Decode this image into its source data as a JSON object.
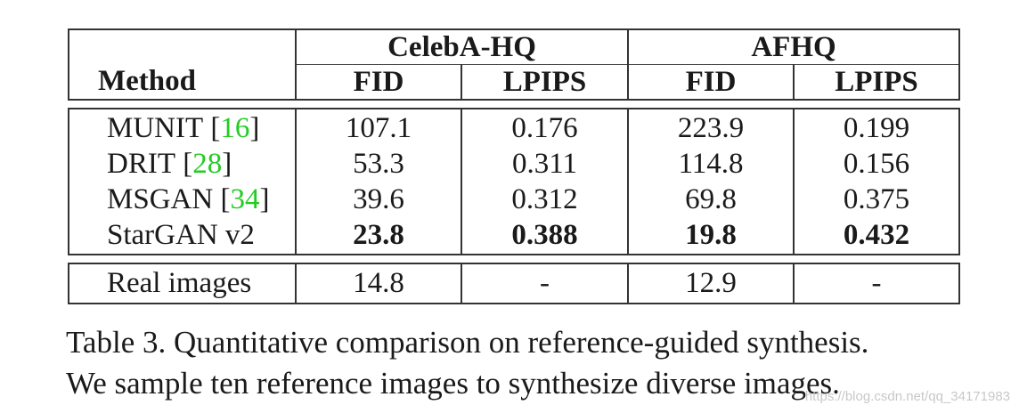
{
  "table": {
    "header": {
      "method": "Method",
      "group1": "CelebA-HQ",
      "group2": "AFHQ",
      "col_fid": "FID",
      "col_lpips": "LPIPS"
    },
    "rows": [
      {
        "method": "MUNIT",
        "cite": "16",
        "celeba_fid": "107.1",
        "celeba_lpips": "0.176",
        "afhq_fid": "223.9",
        "afhq_lpips": "0.199",
        "bold": false
      },
      {
        "method": "DRIT",
        "cite": "28",
        "celeba_fid": "53.3",
        "celeba_lpips": "0.311",
        "afhq_fid": "114.8",
        "afhq_lpips": "0.156",
        "bold": false
      },
      {
        "method": "MSGAN",
        "cite": "34",
        "celeba_fid": "39.6",
        "celeba_lpips": "0.312",
        "afhq_fid": "69.8",
        "afhq_lpips": "0.375",
        "bold": false
      },
      {
        "method": "StarGAN v2",
        "cite": "",
        "celeba_fid": "23.8",
        "celeba_lpips": "0.388",
        "afhq_fid": "19.8",
        "afhq_lpips": "0.432",
        "bold": true
      }
    ],
    "real": {
      "method": "Real images",
      "celeba_fid": "14.8",
      "celeba_lpips": "-",
      "afhq_fid": "12.9",
      "afhq_lpips": "-"
    }
  },
  "caption": {
    "line1": "Table 3. Quantitative comparison on reference-guided synthesis.",
    "line2": "We sample ten reference images to synthesize diverse images."
  },
  "watermark": "https://blog.csdn.net/qq_34171983",
  "colors": {
    "citation": "#22cc22"
  }
}
